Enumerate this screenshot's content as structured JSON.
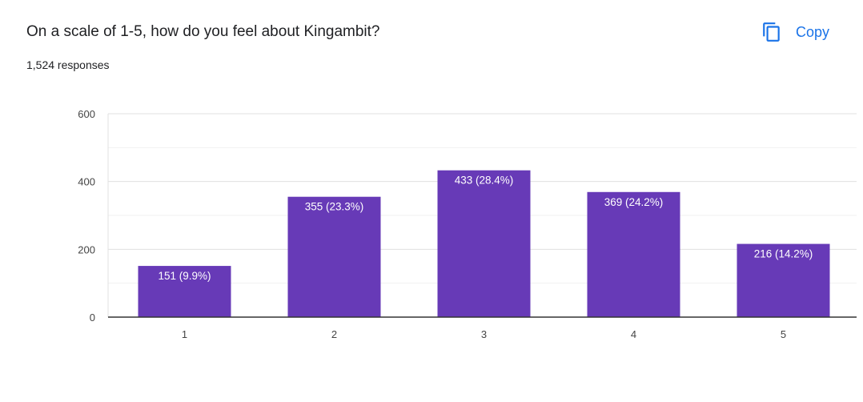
{
  "header": {
    "question": "On a scale of 1-5, how do you feel about Kingambit?",
    "responses": "1,524 responses",
    "copy_label": "Copy"
  },
  "colors": {
    "bar": "#673ab7",
    "accent": "#1a73e8",
    "label_text": "#ffffff",
    "axis_text": "#444444"
  },
  "chart_data": {
    "type": "bar",
    "categories": [
      "1",
      "2",
      "3",
      "4",
      "5"
    ],
    "values": [
      151,
      355,
      433,
      369,
      216
    ],
    "labels": [
      "151 (9.9%)",
      "355 (23.3%)",
      "433 (28.4%)",
      "369 (24.2%)",
      "216 (14.2%)"
    ],
    "yticks": [
      0,
      200,
      400,
      600
    ],
    "ylim": [
      0,
      600
    ],
    "grid": true,
    "title": "",
    "xlabel": "",
    "ylabel": ""
  }
}
